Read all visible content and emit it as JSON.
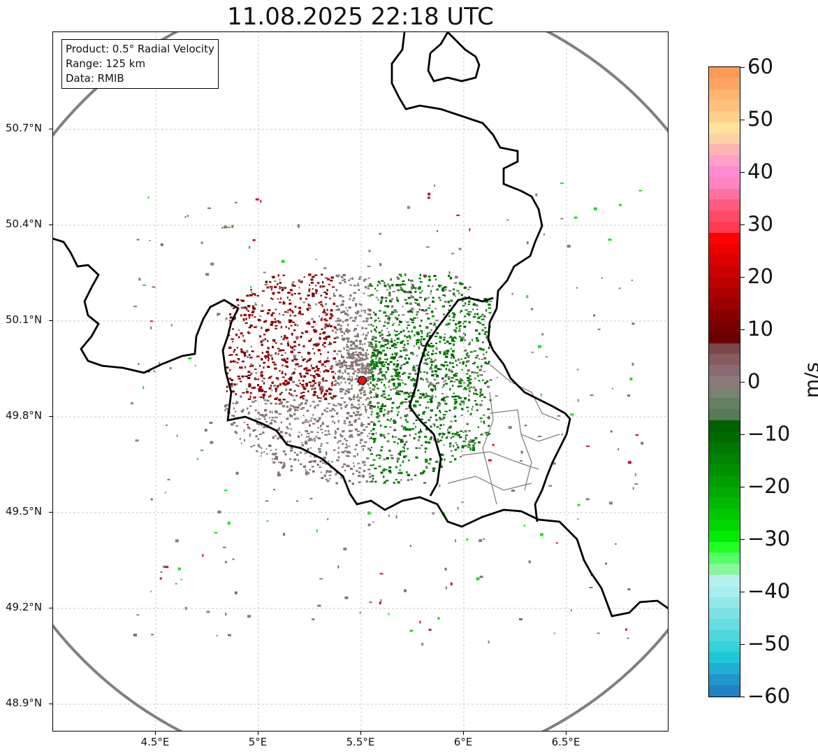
{
  "title": "11.08.2025 22:18 UTC",
  "info_box": {
    "product": "Product: 0.5° Radial Velocity",
    "range": "Range: 125 km",
    "data": "Data: RMIB"
  },
  "lat_ticks": [
    {
      "label": "50.7°N",
      "value": 50.7
    },
    {
      "label": "50.4°N",
      "value": 50.4
    },
    {
      "label": "50.1°N",
      "value": 50.1
    },
    {
      "label": "49.8°N",
      "value": 49.8
    },
    {
      "label": "49.5°N",
      "value": 49.5
    },
    {
      "label": "49.2°N",
      "value": 49.2
    },
    {
      "label": "48.9°N",
      "value": 48.9
    }
  ],
  "lon_ticks": [
    {
      "label": "4.5°E",
      "value": 4.5
    },
    {
      "label": "5°E",
      "value": 5.0
    },
    {
      "label": "5.5°E",
      "value": 5.5
    },
    {
      "label": "6°E",
      "value": 6.0
    },
    {
      "label": "6.5°E",
      "value": 6.5
    }
  ],
  "radar_site": {
    "lon": 5.505,
    "lat": 49.914,
    "color": "#e8121b"
  },
  "colorbar": {
    "unit": "m/s",
    "min": -60,
    "max": 60,
    "tick_labels": [
      "60",
      "50",
      "40",
      "30",
      "20",
      "10",
      "0",
      "−10",
      "−20",
      "−30",
      "−40",
      "−50",
      "−60"
    ],
    "tick_values": [
      60,
      50,
      40,
      30,
      20,
      10,
      0,
      -10,
      -20,
      -30,
      -40,
      -50,
      -60
    ],
    "colors_top_to_bottom": [
      "#ff9a55",
      "#ffa563",
      "#ffb56f",
      "#ffc27e",
      "#ffd08a",
      "#ffe39c",
      "#ffd2a6",
      "#ffb5b5",
      "#ffa0c8",
      "#ff8ad0",
      "#ff84c0",
      "#ff70a0",
      "#ff5a80",
      "#ff4a66",
      "#ff3a50",
      "#ff0000",
      "#ee0000",
      "#dd0000",
      "#cc0000",
      "#bb0000",
      "#aa0000",
      "#990000",
      "#880000",
      "#770000",
      "#6a0000",
      "#7a4848",
      "#885a5e",
      "#8a6a72",
      "#8a7a78",
      "#7a8272",
      "#667f62",
      "#557a55",
      "#006000",
      "#006a00",
      "#007800",
      "#008400",
      "#009000",
      "#009c00",
      "#00aa00",
      "#00b800",
      "#00c800",
      "#00d800",
      "#00ec00",
      "#22ff22",
      "#55ff66",
      "#88f79a",
      "#b7f0f0",
      "#a6eef0",
      "#92e8ea",
      "#7de2e6",
      "#66dde2",
      "#4ed8de",
      "#36d3da",
      "#1fc8d6",
      "#1faed4",
      "#2194cc",
      "#2380c4"
    ]
  },
  "map_colors": {
    "range_ring": "#808080",
    "border": "#000000",
    "admin_lines": "#7a7a7a",
    "grid": "#b8b8b8"
  }
}
